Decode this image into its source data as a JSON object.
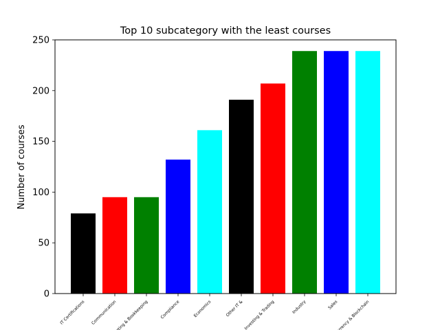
{
  "chart_data": {
    "type": "bar",
    "title": "Top 10 subcategory with the least courses",
    "xlabel": "",
    "ylabel": "Number of courses",
    "categories": [
      "IT Certifications",
      "Communication",
      "Accounting & Bookkeeping",
      "Compliance",
      "Economics",
      "Other IT &",
      "Investing & Trading",
      "Industry",
      "Sales",
      "Cryptocurrency & Blockchain"
    ],
    "values": [
      79,
      95,
      95,
      132,
      161,
      191,
      207,
      239,
      239,
      239
    ],
    "colors": [
      "#000000",
      "#ff0000",
      "#008000",
      "#0000ff",
      "#00ffff",
      "#000000",
      "#ff0000",
      "#008000",
      "#0000ff",
      "#00ffff"
    ],
    "ylim": [
      0,
      250
    ],
    "yticks": [
      0,
      50,
      100,
      150,
      200,
      250
    ],
    "grid": false,
    "legend": "none"
  }
}
